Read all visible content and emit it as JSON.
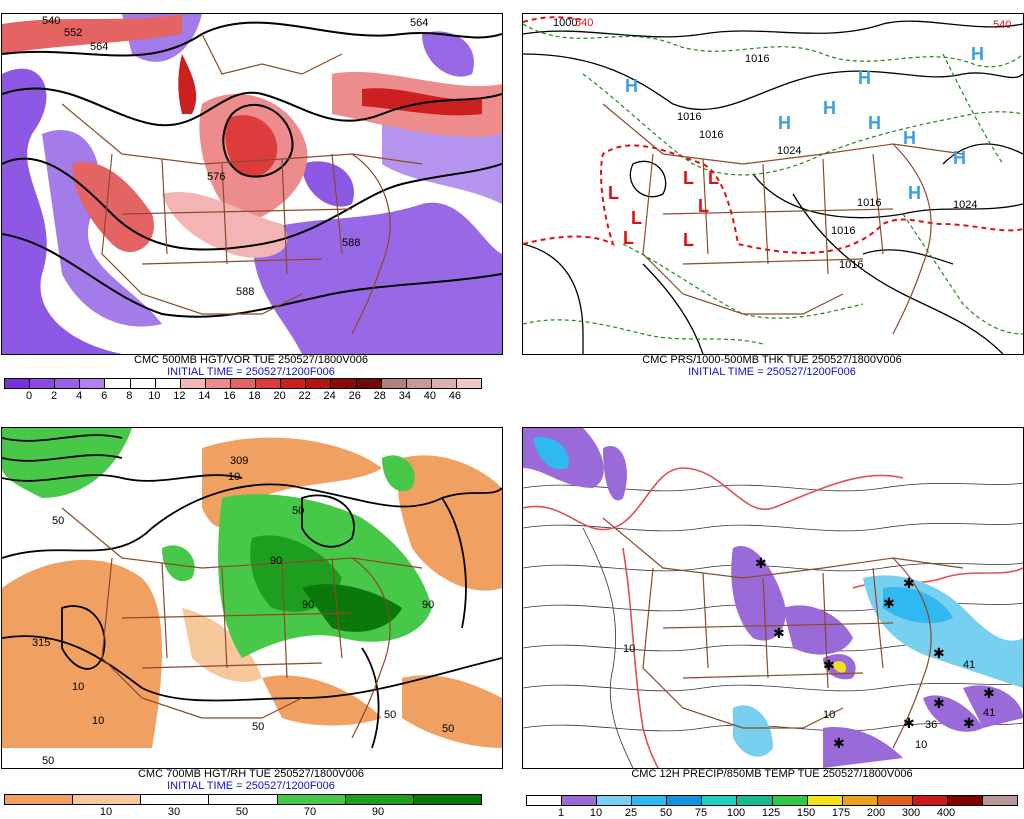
{
  "panels": [
    {
      "id": "vor",
      "caption_line1": "CMC 500MB HGT/VOR TUE 250527/1800V006",
      "caption_line2": "INITIAL TIME = 250527/1200F006",
      "colors": [
        "#7a30d8",
        "#8c48e0",
        "#9c60e6",
        "#b080ec",
        "#ffffff",
        "#ffffff",
        "#ffffff",
        "#f2b4b4",
        "#ec8c8c",
        "#e46464",
        "#dc3c3c",
        "#cc2020",
        "#b41414",
        "#8c0a0a",
        "#6e0a0a",
        "#b08080",
        "#c89898",
        "#dcb0b0",
        "#f0c8c8"
      ],
      "ticks": [
        "0",
        "2",
        "4",
        "6",
        "8",
        "10",
        "12",
        "14",
        "16",
        "18",
        "20",
        "22",
        "24",
        "26",
        "28",
        "34",
        "40",
        "46"
      ],
      "contour_labels": [
        "540",
        "552",
        "564",
        "564",
        "576",
        "588",
        "588"
      ]
    },
    {
      "id": "prs",
      "caption_line1": "CMC PRS/1000-500MB THK TUE 250527/1800V006",
      "caption_line2": "INITIAL TIME = 250527/1200F006",
      "contour_labels": [
        "1016",
        "1016",
        "1016",
        "1024",
        "1016",
        "1016",
        "1016",
        "1024",
        "1000",
        "540",
        "540"
      ],
      "highs": 9,
      "lows": 7
    },
    {
      "id": "rh",
      "caption_line1": "CMC 700MB HGT/RH TUE 250527/1800V006",
      "caption_line2": "INITIAL TIME = 250527/1200F006",
      "colors": [
        "#f0a060",
        "#f7c89c",
        "#ffffff",
        "#ffffff",
        "#48c848",
        "#1e9e1e",
        "#0a780a"
      ],
      "ticks": [
        "10",
        "30",
        "50",
        "70",
        "90"
      ],
      "contour_labels": [
        "315",
        "309",
        "10",
        "10",
        "50",
        "50",
        "50",
        "50",
        "50",
        "50",
        "90",
        "90",
        "90",
        "10"
      ]
    },
    {
      "id": "precip",
      "caption_line1": "CMC 12H PRECIP/850MB TEMP TUE 250527/1800V006",
      "caption_line2": "",
      "colors": [
        "#ffffff",
        "#9a6ad8",
        "#78d0f0",
        "#30b8f0",
        "#1890e0",
        "#20d0c0",
        "#18b890",
        "#30c848",
        "#f0e020",
        "#f0a020",
        "#e06020",
        "#c81818",
        "#800000",
        "#b89898"
      ],
      "ticks": [
        "1",
        "10",
        "25",
        "50",
        "75",
        "100",
        "125",
        "150",
        "175",
        "200",
        "300",
        "400"
      ],
      "contour_labels": [
        "41",
        "41",
        "36",
        "10",
        "10",
        "10"
      ]
    }
  ]
}
